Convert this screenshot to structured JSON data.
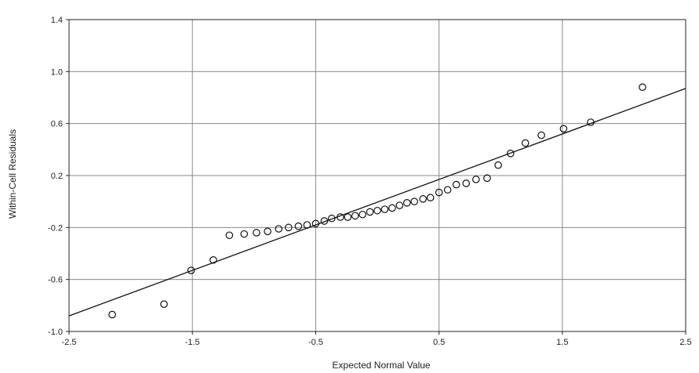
{
  "chart_data": {
    "type": "scatter",
    "title": "",
    "xlabel": "Expected Normal Value",
    "ylabel": "Within-Cell Residuals",
    "xlim": [
      -2.5,
      2.5
    ],
    "ylim": [
      -1.0,
      1.4
    ],
    "xticks": [
      -2.5,
      -1.5,
      -0.5,
      0.5,
      1.5,
      2.5
    ],
    "xtick_labels": [
      "-2.5",
      "-1.5",
      "-0.5",
      "0.5",
      "1.5",
      "2.5"
    ],
    "yticks": [
      -1.0,
      -0.6,
      -0.2,
      0.2,
      0.6,
      1.0,
      1.4
    ],
    "ytick_labels": [
      "-1.0",
      "-0.6",
      "-0.2",
      "0.2",
      "0.6",
      "1.0",
      "1.4"
    ],
    "grid": true,
    "series": [
      {
        "marker": "open-circle",
        "points": [
          {
            "x": -2.15,
            "y": -0.87
          },
          {
            "x": -1.73,
            "y": -0.79
          },
          {
            "x": -1.51,
            "y": -0.53
          },
          {
            "x": -1.33,
            "y": -0.45
          },
          {
            "x": -1.2,
            "y": -0.26
          },
          {
            "x": -1.08,
            "y": -0.25
          },
          {
            "x": -0.98,
            "y": -0.24
          },
          {
            "x": -0.89,
            "y": -0.23
          },
          {
            "x": -0.8,
            "y": -0.21
          },
          {
            "x": -0.72,
            "y": -0.2
          },
          {
            "x": -0.64,
            "y": -0.19
          },
          {
            "x": -0.57,
            "y": -0.18
          },
          {
            "x": -0.5,
            "y": -0.17
          },
          {
            "x": -0.43,
            "y": -0.15
          },
          {
            "x": -0.37,
            "y": -0.13
          },
          {
            "x": -0.3,
            "y": -0.12
          },
          {
            "x": -0.24,
            "y": -0.12
          },
          {
            "x": -0.18,
            "y": -0.11
          },
          {
            "x": -0.12,
            "y": -0.1
          },
          {
            "x": -0.06,
            "y": -0.08
          },
          {
            "x": 0.0,
            "y": -0.07
          },
          {
            "x": 0.06,
            "y": -0.06
          },
          {
            "x": 0.12,
            "y": -0.05
          },
          {
            "x": 0.18,
            "y": -0.03
          },
          {
            "x": 0.24,
            "y": -0.01
          },
          {
            "x": 0.3,
            "y": 0.0
          },
          {
            "x": 0.37,
            "y": 0.02
          },
          {
            "x": 0.43,
            "y": 0.03
          },
          {
            "x": 0.5,
            "y": 0.07
          },
          {
            "x": 0.57,
            "y": 0.09
          },
          {
            "x": 0.64,
            "y": 0.13
          },
          {
            "x": 0.72,
            "y": 0.14
          },
          {
            "x": 0.8,
            "y": 0.17
          },
          {
            "x": 0.89,
            "y": 0.18
          },
          {
            "x": 0.98,
            "y": 0.28
          },
          {
            "x": 1.08,
            "y": 0.37
          },
          {
            "x": 1.2,
            "y": 0.45
          },
          {
            "x": 1.33,
            "y": 0.51
          },
          {
            "x": 1.51,
            "y": 0.56
          },
          {
            "x": 1.73,
            "y": 0.61
          },
          {
            "x": 2.15,
            "y": 0.88
          }
        ]
      }
    ],
    "reference_line": {
      "x": [
        -2.5,
        2.5
      ],
      "y": [
        -0.88,
        0.87
      ]
    }
  }
}
